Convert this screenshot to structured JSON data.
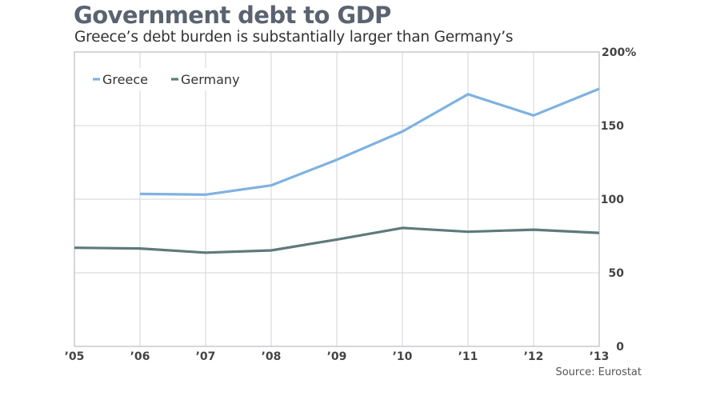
{
  "header": {
    "title": "Government debt to GDP",
    "subtitle": "Greece’s debt burden is substantially larger than Germany’s"
  },
  "footer": {
    "source": "Source: Eurostat"
  },
  "colors": {
    "greece": "#7fb2e0",
    "germany": "#5e7a7a",
    "grid": "#d6d6da",
    "frame": "#b9bcc4"
  },
  "chart_data": {
    "type": "line",
    "title": "Government debt to GDP",
    "subtitle": "Greece’s debt burden is substantially larger than Germany’s",
    "xlabel": "",
    "ylabel": "",
    "x": [
      "2005",
      "2006",
      "2007",
      "2008",
      "2009",
      "2010",
      "2011",
      "2012",
      "2013"
    ],
    "x_tick_labels": [
      "’05",
      "’06",
      "’07",
      "’08",
      "’09",
      "’10",
      "’11",
      "’12",
      "’13"
    ],
    "y_ticks": [
      0,
      50,
      100,
      150,
      200
    ],
    "y_tick_labels": [
      "0",
      "50",
      "100",
      "150",
      "200%"
    ],
    "ylim": [
      0,
      200
    ],
    "y_axis_side": "right",
    "grid": true,
    "legend_position": "top-left",
    "series": [
      {
        "name": "Greece",
        "color": "#7fb2e0",
        "values": [
          null,
          103.6,
          103.1,
          109.4,
          126.8,
          146.0,
          171.3,
          156.9,
          175.0
        ]
      },
      {
        "name": "Germany",
        "color": "#5e7a7a",
        "values": [
          67.0,
          66.5,
          63.7,
          65.2,
          72.6,
          80.5,
          77.9,
          79.3,
          77.1
        ]
      }
    ],
    "source": "Source: Eurostat"
  }
}
